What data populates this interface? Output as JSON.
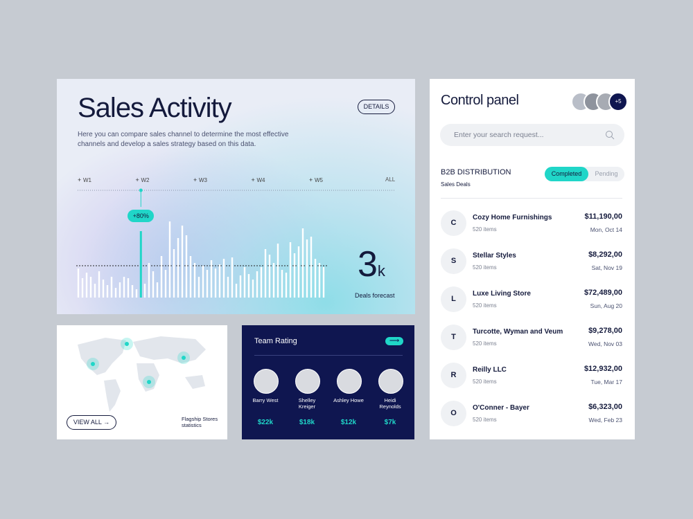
{
  "sales_activity": {
    "title": "Sales Activity",
    "description": "Here you can compare sales channel to determine the most effective channels and develop a sales strategy based on this data.",
    "details_button": "DETAILS",
    "weeks": [
      "W1",
      "W2",
      "W3",
      "W4",
      "W5"
    ],
    "all_label": "ALL",
    "highlight_label": "+80%",
    "highlight_index": 15,
    "bar_values": [
      42,
      28,
      36,
      30,
      20,
      38,
      26,
      18,
      30,
      14,
      22,
      30,
      28,
      18,
      12,
      96,
      20,
      50,
      38,
      22,
      60,
      40,
      110,
      70,
      86,
      104,
      90,
      60,
      50,
      30,
      46,
      40,
      54,
      42,
      48,
      56,
      30,
      58,
      20,
      32,
      44,
      34,
      26,
      38,
      44,
      70,
      62,
      50,
      78,
      40,
      36,
      80,
      64,
      74,
      100,
      84,
      88,
      56,
      50,
      44
    ],
    "forecast_value": "3",
    "forecast_unit": "k",
    "forecast_label": "Deals forecast"
  },
  "map": {
    "button": "VIEW ALL",
    "caption": "Flagship Stores statistics"
  },
  "team_rating": {
    "title": "Team Rating",
    "members": [
      {
        "name": "Barry West",
        "value": "$22k"
      },
      {
        "name": "Shelley Kreiger",
        "value": "$18k"
      },
      {
        "name": "Ashley Howe",
        "value": "$12k"
      },
      {
        "name": "Heidi Reynolds",
        "value": "$7k"
      }
    ]
  },
  "control_panel": {
    "title": "Control panel",
    "avatar_more": "+5",
    "search_placeholder": "Enter your search request...",
    "section_title": "B2B DISTRIBUTION",
    "section_subtitle": "Sales Deals",
    "tabs": [
      "Completed",
      "Pending"
    ],
    "deals": [
      {
        "initial": "C",
        "name": "Cozy Home Furnishings",
        "items": "520 items",
        "amount": "$11,190,00",
        "date": "Mon, Oct 14"
      },
      {
        "initial": "S",
        "name": "Stellar Styles",
        "items": "520 items",
        "amount": "$8,292,00",
        "date": "Sat, Nov 19"
      },
      {
        "initial": "L",
        "name": "Luxe Living Store",
        "items": "520 items",
        "amount": "$72,489,00",
        "date": "Sun, Aug 20"
      },
      {
        "initial": "T",
        "name": "Turcotte, Wyman and Veum",
        "items": "520 items",
        "amount": "$9,278,00",
        "date": "Wed, Nov 03"
      },
      {
        "initial": "R",
        "name": "Reilly LLC",
        "items": "520 items",
        "amount": "$12,932,00",
        "date": "Tue, Mar 17"
      },
      {
        "initial": "O",
        "name": "O'Conner - Bayer",
        "items": "520 items",
        "amount": "$6,323,00",
        "date": "Wed, Feb 23"
      }
    ]
  }
}
